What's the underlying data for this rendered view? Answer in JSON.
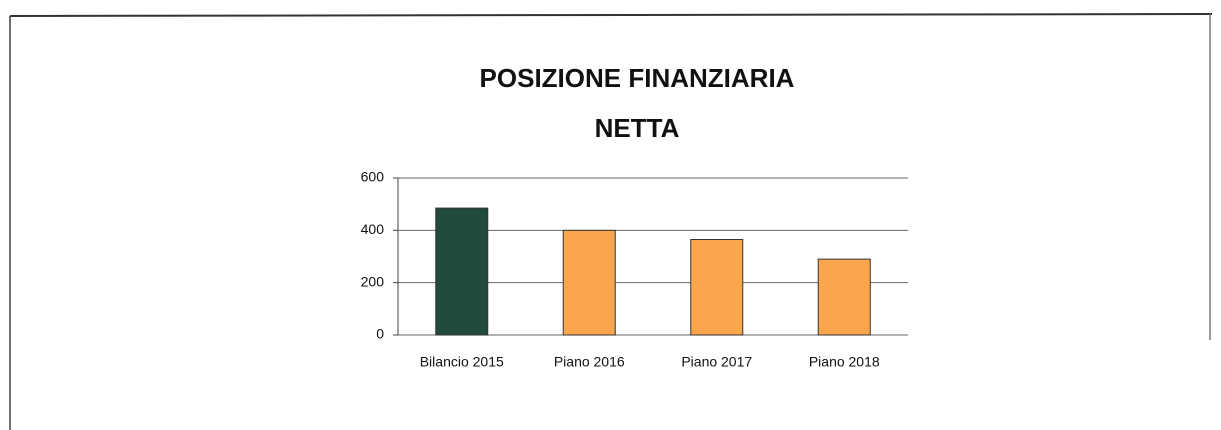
{
  "chart_data": {
    "type": "bar",
    "title": [
      "POSIZIONE FINANZIARIA",
      "NETTA"
    ],
    "categories": [
      "Bilancio 2015",
      "Piano 2016",
      "Piano 2017",
      "Piano 2018"
    ],
    "values": [
      485,
      400,
      365,
      290
    ],
    "colors": [
      "#1f4a3c",
      "#f9a64c",
      "#f9a64c",
      "#f9a64c"
    ],
    "ylim": [
      0,
      600
    ],
    "yticks": [
      0,
      200,
      400,
      600
    ],
    "grid": true
  }
}
